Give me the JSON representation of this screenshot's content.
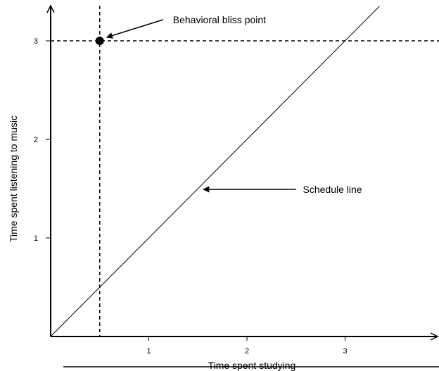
{
  "chart_data": {
    "type": "line",
    "title": "",
    "xlabel": "Time spent studying",
    "ylabel": "Time spent listening to music",
    "x_ticks": [
      1,
      2,
      3
    ],
    "y_ticks": [
      1,
      2,
      3
    ],
    "xlim": [
      0,
      3.95
    ],
    "ylim": [
      0,
      3.3
    ],
    "grid": false,
    "schedule_line": {
      "x": [
        0,
        3.35
      ],
      "y": [
        0,
        3.35
      ]
    },
    "bliss_point": {
      "x": 0.5,
      "y": 3.0
    },
    "annotations": [
      {
        "text": "Behavioral bliss point",
        "target": "bliss_point"
      },
      {
        "text": "Schedule line",
        "target": "schedule_line"
      }
    ]
  }
}
